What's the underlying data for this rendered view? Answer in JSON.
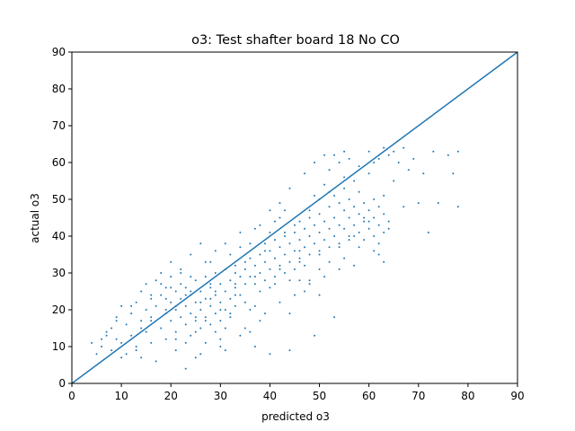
{
  "chart_data": {
    "type": "scatter",
    "title": "o3: Test shafter board 18 No CO",
    "xlabel": "predicted o3",
    "ylabel": "actual o3",
    "xlim": [
      0,
      90
    ],
    "ylim": [
      0,
      90
    ],
    "xticks": [
      "0",
      "10",
      "20",
      "30",
      "40",
      "50",
      "60",
      "70",
      "80",
      "90"
    ],
    "yticks": [
      "0",
      "10",
      "20",
      "30",
      "40",
      "50",
      "60",
      "70",
      "80",
      "90"
    ],
    "grid": false,
    "reference_line": {
      "x": [
        0,
        90
      ],
      "y": [
        0,
        90
      ]
    },
    "colors": {
      "points": "#1f77b4",
      "line": "#1f77b4"
    },
    "series": [
      {
        "points": [
          [
            4,
            11
          ],
          [
            5,
            8
          ],
          [
            6,
            12
          ],
          [
            6,
            10
          ],
          [
            7,
            13
          ],
          [
            8,
            9
          ],
          [
            8,
            15
          ],
          [
            9,
            12
          ],
          [
            9,
            18
          ],
          [
            10,
            11
          ],
          [
            10,
            21
          ],
          [
            11,
            16
          ],
          [
            11,
            8
          ],
          [
            12,
            19
          ],
          [
            12,
            13
          ],
          [
            13,
            22
          ],
          [
            13,
            10
          ],
          [
            14,
            17
          ],
          [
            14,
            25
          ],
          [
            14,
            7
          ],
          [
            15,
            14
          ],
          [
            15,
            20
          ],
          [
            15,
            27
          ],
          [
            16,
            23
          ],
          [
            16,
            11
          ],
          [
            16,
            18
          ],
          [
            17,
            28
          ],
          [
            17,
            21
          ],
          [
            17,
            6
          ],
          [
            18,
            15
          ],
          [
            18,
            24
          ],
          [
            18,
            30
          ],
          [
            19,
            19
          ],
          [
            19,
            26
          ],
          [
            19,
            12
          ],
          [
            20,
            22
          ],
          [
            20,
            17
          ],
          [
            20,
            29
          ],
          [
            20,
            33
          ],
          [
            21,
            14
          ],
          [
            21,
            25
          ],
          [
            21,
            20
          ],
          [
            21,
            9
          ],
          [
            22,
            27
          ],
          [
            22,
            18
          ],
          [
            22,
            23
          ],
          [
            22,
            31
          ],
          [
            23,
            16
          ],
          [
            23,
            21
          ],
          [
            23,
            26
          ],
          [
            23,
            4
          ],
          [
            24,
            19
          ],
          [
            24,
            24
          ],
          [
            24,
            13
          ],
          [
            24,
            35
          ],
          [
            25,
            22
          ],
          [
            25,
            17
          ],
          [
            25,
            28
          ],
          [
            25,
            7
          ],
          [
            26,
            20
          ],
          [
            26,
            25
          ],
          [
            26,
            15
          ],
          [
            26,
            38
          ],
          [
            27,
            23
          ],
          [
            27,
            18
          ],
          [
            27,
            29
          ],
          [
            27,
            11
          ],
          [
            28,
            21
          ],
          [
            28,
            26
          ],
          [
            28,
            16
          ],
          [
            28,
            33
          ],
          [
            29,
            24
          ],
          [
            29,
            19
          ],
          [
            29,
            14
          ],
          [
            29,
            30
          ],
          [
            30,
            22
          ],
          [
            30,
            27
          ],
          [
            30,
            17
          ],
          [
            30,
            10
          ],
          [
            31,
            25
          ],
          [
            31,
            20
          ],
          [
            31,
            31
          ],
          [
            31,
            15
          ],
          [
            32,
            28
          ],
          [
            32,
            23
          ],
          [
            32,
            18
          ],
          [
            32,
            35
          ],
          [
            33,
            26
          ],
          [
            33,
            21
          ],
          [
            33,
            32
          ],
          [
            34,
            29
          ],
          [
            34,
            24
          ],
          [
            34,
            37
          ],
          [
            35,
            27
          ],
          [
            35,
            31
          ],
          [
            35,
            22
          ],
          [
            36,
            34
          ],
          [
            36,
            29
          ],
          [
            36,
            38
          ],
          [
            37,
            32
          ],
          [
            37,
            27
          ],
          [
            37,
            42
          ],
          [
            38,
            35
          ],
          [
            38,
            30
          ],
          [
            38,
            25
          ],
          [
            39,
            33
          ],
          [
            39,
            38
          ],
          [
            39,
            28
          ],
          [
            40,
            36
          ],
          [
            40,
            31
          ],
          [
            40,
            41
          ],
          [
            40,
            26
          ],
          [
            41,
            34
          ],
          [
            41,
            29
          ],
          [
            41,
            39
          ],
          [
            42,
            37
          ],
          [
            42,
            32
          ],
          [
            42,
            45
          ],
          [
            43,
            35
          ],
          [
            43,
            30
          ],
          [
            43,
            40
          ],
          [
            44,
            33
          ],
          [
            44,
            38
          ],
          [
            44,
            28
          ],
          [
            45,
            36
          ],
          [
            45,
            41
          ],
          [
            45,
            31
          ],
          [
            46,
            39
          ],
          [
            46,
            34
          ],
          [
            46,
            44
          ],
          [
            47,
            37
          ],
          [
            47,
            42
          ],
          [
            47,
            32
          ],
          [
            48,
            40
          ],
          [
            48,
            35
          ],
          [
            48,
            47
          ],
          [
            48,
            28
          ],
          [
            49,
            43
          ],
          [
            49,
            38
          ],
          [
            49,
            51
          ],
          [
            50,
            41
          ],
          [
            50,
            36
          ],
          [
            50,
            46
          ],
          [
            50,
            31
          ],
          [
            51,
            44
          ],
          [
            51,
            39
          ],
          [
            51,
            54
          ],
          [
            52,
            42
          ],
          [
            52,
            48
          ],
          [
            52,
            37
          ],
          [
            52,
            58
          ],
          [
            53,
            45
          ],
          [
            53,
            40
          ],
          [
            53,
            51
          ],
          [
            53,
            62
          ],
          [
            54,
            43
          ],
          [
            54,
            49
          ],
          [
            54,
            38
          ],
          [
            54,
            60
          ],
          [
            55,
            47
          ],
          [
            55,
            42
          ],
          [
            55,
            53
          ],
          [
            55,
            34
          ],
          [
            56,
            45
          ],
          [
            56,
            50
          ],
          [
            56,
            40
          ],
          [
            56,
            61
          ],
          [
            57,
            48
          ],
          [
            57,
            43
          ],
          [
            57,
            55
          ],
          [
            58,
            46
          ],
          [
            58,
            41
          ],
          [
            58,
            52
          ],
          [
            59,
            44
          ],
          [
            59,
            49
          ],
          [
            59,
            39
          ],
          [
            60,
            47
          ],
          [
            60,
            42
          ],
          [
            60,
            57
          ],
          [
            60,
            63
          ],
          [
            61,
            45
          ],
          [
            61,
            40
          ],
          [
            61,
            50
          ],
          [
            61,
            36
          ],
          [
            62,
            43
          ],
          [
            62,
            48
          ],
          [
            62,
            38
          ],
          [
            62,
            61
          ],
          [
            63,
            46
          ],
          [
            63,
            41
          ],
          [
            63,
            64
          ],
          [
            63,
            33
          ],
          [
            64,
            44
          ],
          [
            64,
            62
          ],
          [
            65,
            63
          ],
          [
            66,
            60
          ],
          [
            67,
            64
          ],
          [
            68,
            58
          ],
          [
            69,
            61
          ],
          [
            70,
            49
          ],
          [
            71,
            57
          ],
          [
            72,
            41
          ],
          [
            73,
            63
          ],
          [
            74,
            49
          ],
          [
            76,
            62
          ],
          [
            77,
            57
          ],
          [
            78,
            63
          ],
          [
            78,
            48
          ],
          [
            18,
            27
          ],
          [
            24,
            29
          ],
          [
            28,
            23
          ],
          [
            33,
            24
          ],
          [
            36,
            20
          ],
          [
            39,
            19
          ],
          [
            42,
            22
          ],
          [
            45,
            24
          ],
          [
            48,
            27
          ],
          [
            51,
            29
          ],
          [
            35,
            15
          ],
          [
            30,
            12
          ],
          [
            26,
            8
          ],
          [
            44,
            9
          ],
          [
            49,
            13
          ],
          [
            53,
            18
          ],
          [
            57,
            32
          ],
          [
            62,
            35
          ],
          [
            46,
            28
          ],
          [
            50,
            24
          ],
          [
            40,
            47
          ],
          [
            42,
            49
          ],
          [
            44,
            53
          ],
          [
            47,
            57
          ],
          [
            49,
            60
          ],
          [
            51,
            62
          ],
          [
            55,
            63
          ],
          [
            41,
            44
          ],
          [
            43,
            47
          ],
          [
            38,
            43
          ],
          [
            34,
            41
          ],
          [
            31,
            38
          ],
          [
            29,
            36
          ],
          [
            27,
            33
          ],
          [
            22,
            30
          ],
          [
            20,
            26
          ],
          [
            16,
            24
          ],
          [
            12,
            21
          ],
          [
            9,
            17
          ],
          [
            7,
            14
          ],
          [
            10,
            7
          ],
          [
            13,
            9
          ],
          [
            21,
            12
          ],
          [
            23,
            11
          ],
          [
            25,
            14
          ],
          [
            31,
            9
          ],
          [
            34,
            13
          ],
          [
            37,
            10
          ],
          [
            40,
            8
          ],
          [
            27,
            17
          ],
          [
            32,
            19
          ],
          [
            37,
            21
          ],
          [
            41,
            27
          ],
          [
            46,
            36
          ],
          [
            52,
            33
          ],
          [
            56,
            39
          ],
          [
            59,
            45
          ],
          [
            63,
            51
          ],
          [
            65,
            55
          ],
          [
            67,
            48
          ],
          [
            64,
            42
          ],
          [
            58,
            37
          ],
          [
            54,
            31
          ],
          [
            47,
            25
          ],
          [
            44,
            19
          ],
          [
            38,
            17
          ],
          [
            36,
            14
          ],
          [
            30,
            20
          ],
          [
            25,
            18
          ],
          [
            21,
            21
          ],
          [
            19,
            23
          ],
          [
            23,
            24
          ],
          [
            26,
            22
          ],
          [
            29,
            25
          ],
          [
            33,
            27
          ],
          [
            37,
            29
          ],
          [
            42,
            31
          ],
          [
            46,
            33
          ],
          [
            50,
            35
          ],
          [
            54,
            37
          ],
          [
            57,
            40
          ],
          [
            60,
            44
          ],
          [
            52,
            52
          ],
          [
            55,
            56
          ],
          [
            58,
            59
          ],
          [
            61,
            60
          ],
          [
            50,
            50
          ],
          [
            48,
            45
          ],
          [
            45,
            43
          ],
          [
            43,
            41
          ],
          [
            39,
            36
          ],
          [
            35,
            33
          ],
          [
            33,
            30
          ],
          [
            28,
            27
          ],
          [
            24,
            25
          ],
          [
            19,
            20
          ],
          [
            16,
            17
          ],
          [
            14,
            15
          ]
        ]
      }
    ]
  }
}
